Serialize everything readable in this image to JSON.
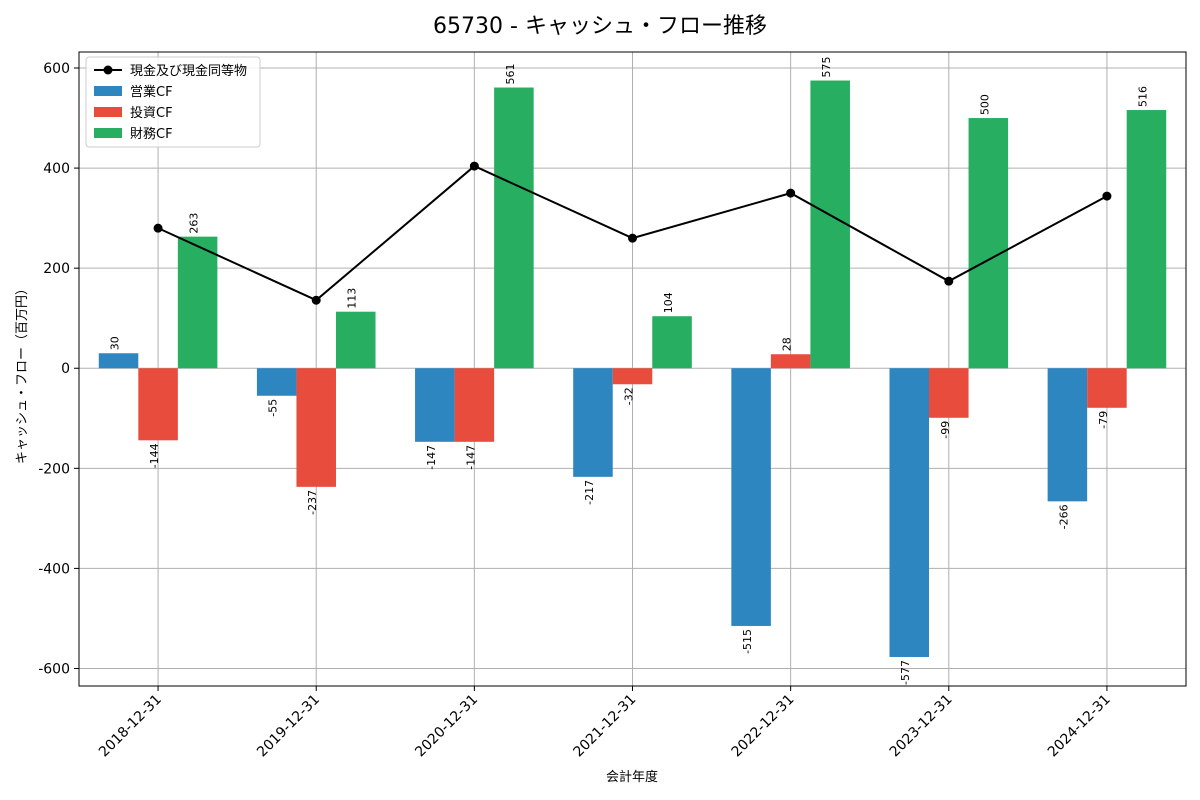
{
  "chart_data": {
    "type": "bar",
    "title": "65730 - キャッシュ・フロー推移",
    "xlabel": "会計年度",
    "ylabel": "キャッシュ・フロー（百万円）",
    "categories": [
      "2018-12-31",
      "2019-12-31",
      "2020-12-31",
      "2021-12-31",
      "2022-12-31",
      "2023-12-31",
      "2024-12-31"
    ],
    "ylim": [
      -635,
      632
    ],
    "yticks": [
      -600,
      -400,
      -200,
      0,
      200,
      400,
      600
    ],
    "ytick_labels": [
      "-600",
      "-400",
      "-200",
      "0",
      "200",
      "400",
      "600"
    ],
    "grid": true,
    "legend_position": "top-left",
    "series": [
      {
        "name": "営業CF",
        "kind": "bar",
        "color": "#2e86c1",
        "values": [
          30,
          -55,
          -147,
          -217,
          -515,
          -577,
          -266
        ],
        "labels": [
          "30",
          "-55",
          "-147",
          "-217",
          "-515",
          "-577",
          "-266"
        ]
      },
      {
        "name": "投資CF",
        "kind": "bar",
        "color": "#e74c3c",
        "values": [
          -144,
          -237,
          -147,
          -32,
          28,
          -99,
          -79
        ],
        "labels": [
          "-144",
          "-237",
          "-147",
          "-32",
          "28",
          "-99",
          "-79"
        ]
      },
      {
        "name": "財務CF",
        "kind": "bar",
        "color": "#27ae60",
        "values": [
          263,
          113,
          561,
          104,
          575,
          500,
          516
        ],
        "labels": [
          "263",
          "113",
          "561",
          "104",
          "575",
          "500",
          "516"
        ]
      },
      {
        "name": "現金及び現金同等物",
        "kind": "line",
        "color": "#000000",
        "values": [
          280,
          136,
          404,
          260,
          350,
          174,
          344
        ]
      }
    ],
    "legend_order": [
      3,
      0,
      1,
      2
    ]
  }
}
